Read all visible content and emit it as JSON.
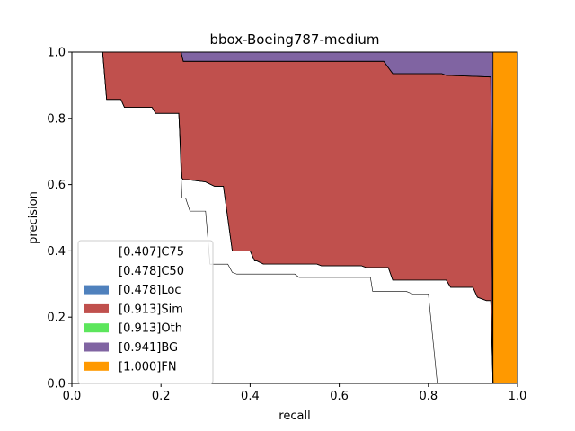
{
  "chart_data": {
    "type": "area",
    "title": "bbox-Boeing787-medium",
    "xlabel": "recall",
    "ylabel": "precision",
    "xlim": [
      0.0,
      1.0
    ],
    "ylim": [
      0.0,
      1.0
    ],
    "xticks": [
      "0.0",
      "0.2",
      "0.4",
      "0.6",
      "0.8",
      "1.0"
    ],
    "yticks": [
      "0.0",
      "0.2",
      "0.4",
      "0.6",
      "0.8",
      "1.0"
    ],
    "legend_position": "lower-left",
    "grid": false,
    "series": [
      {
        "name": "[0.407]C75",
        "color": "#ffffff",
        "points": [
          [
            0.0,
            1.0
          ],
          [
            0.069,
            1.0
          ],
          [
            0.078,
            0.857
          ],
          [
            0.11,
            0.857
          ],
          [
            0.118,
            0.833
          ],
          [
            0.18,
            0.833
          ],
          [
            0.188,
            0.815
          ],
          [
            0.24,
            0.815
          ],
          [
            0.247,
            0.56
          ],
          [
            0.255,
            0.56
          ],
          [
            0.265,
            0.52
          ],
          [
            0.3,
            0.52
          ],
          [
            0.31,
            0.36
          ],
          [
            0.35,
            0.36
          ],
          [
            0.36,
            0.335
          ],
          [
            0.37,
            0.33
          ],
          [
            0.5,
            0.33
          ],
          [
            0.51,
            0.32
          ],
          [
            0.67,
            0.32
          ],
          [
            0.675,
            0.278
          ],
          [
            0.75,
            0.278
          ],
          [
            0.765,
            0.27
          ],
          [
            0.8,
            0.27
          ],
          [
            0.82,
            0.0
          ]
        ]
      },
      {
        "name": "[0.478]C50",
        "color": "#ffffff",
        "points": [
          [
            0.0,
            1.0
          ],
          [
            0.069,
            1.0
          ],
          [
            0.078,
            0.857
          ],
          [
            0.11,
            0.857
          ],
          [
            0.118,
            0.833
          ],
          [
            0.18,
            0.833
          ],
          [
            0.188,
            0.815
          ],
          [
            0.24,
            0.815
          ],
          [
            0.247,
            0.62
          ],
          [
            0.25,
            0.615
          ],
          [
            0.26,
            0.615
          ],
          [
            0.3,
            0.608
          ],
          [
            0.32,
            0.595
          ],
          [
            0.34,
            0.595
          ],
          [
            0.36,
            0.4
          ],
          [
            0.4,
            0.4
          ],
          [
            0.41,
            0.37
          ],
          [
            0.415,
            0.37
          ],
          [
            0.43,
            0.36
          ],
          [
            0.55,
            0.36
          ],
          [
            0.56,
            0.355
          ],
          [
            0.65,
            0.355
          ],
          [
            0.66,
            0.35
          ],
          [
            0.71,
            0.35
          ],
          [
            0.72,
            0.312
          ],
          [
            0.84,
            0.312
          ],
          [
            0.85,
            0.29
          ],
          [
            0.9,
            0.29
          ],
          [
            0.91,
            0.26
          ],
          [
            0.93,
            0.25
          ],
          [
            0.94,
            0.25
          ],
          [
            0.945,
            0.0
          ]
        ]
      },
      {
        "name": "[0.478]Loc",
        "color": "#4f81bd",
        "points": [
          [
            0.0,
            1.0
          ],
          [
            0.069,
            1.0
          ],
          [
            0.078,
            0.857
          ],
          [
            0.11,
            0.857
          ],
          [
            0.118,
            0.833
          ],
          [
            0.18,
            0.833
          ],
          [
            0.188,
            0.815
          ],
          [
            0.24,
            0.815
          ],
          [
            0.247,
            0.62
          ],
          [
            0.25,
            0.615
          ],
          [
            0.26,
            0.615
          ],
          [
            0.3,
            0.608
          ],
          [
            0.32,
            0.595
          ],
          [
            0.34,
            0.595
          ],
          [
            0.36,
            0.4
          ],
          [
            0.4,
            0.4
          ],
          [
            0.41,
            0.37
          ],
          [
            0.415,
            0.37
          ],
          [
            0.43,
            0.36
          ],
          [
            0.55,
            0.36
          ],
          [
            0.56,
            0.355
          ],
          [
            0.65,
            0.355
          ],
          [
            0.66,
            0.35
          ],
          [
            0.71,
            0.35
          ],
          [
            0.72,
            0.312
          ],
          [
            0.84,
            0.312
          ],
          [
            0.85,
            0.29
          ],
          [
            0.9,
            0.29
          ],
          [
            0.91,
            0.26
          ],
          [
            0.93,
            0.25
          ],
          [
            0.94,
            0.25
          ],
          [
            0.945,
            0.0
          ]
        ]
      },
      {
        "name": "[0.913]Sim",
        "color": "#c0504d",
        "points": [
          [
            0.0,
            1.0
          ],
          [
            0.245,
            1.0
          ],
          [
            0.25,
            0.972
          ],
          [
            0.7,
            0.972
          ],
          [
            0.72,
            0.935
          ],
          [
            0.83,
            0.935
          ],
          [
            0.84,
            0.93
          ],
          [
            0.94,
            0.925
          ],
          [
            0.945,
            0.0
          ]
        ]
      },
      {
        "name": "[0.913]Oth",
        "color": "#5ce65c",
        "points": [
          [
            0.0,
            1.0
          ],
          [
            0.245,
            1.0
          ],
          [
            0.25,
            0.972
          ],
          [
            0.7,
            0.972
          ],
          [
            0.72,
            0.935
          ],
          [
            0.83,
            0.935
          ],
          [
            0.84,
            0.93
          ],
          [
            0.94,
            0.925
          ],
          [
            0.945,
            0.0
          ]
        ]
      },
      {
        "name": "[0.941]BG",
        "color": "#8064a2",
        "points": [
          [
            0.0,
            1.0
          ],
          [
            0.945,
            1.0
          ],
          [
            0.945,
            0.0
          ]
        ]
      },
      {
        "name": "[1.000]FN",
        "color": "#ff9900",
        "points": [
          [
            0.0,
            1.0
          ],
          [
            1.0,
            1.0
          ],
          [
            1.0,
            0.0
          ]
        ]
      }
    ]
  }
}
